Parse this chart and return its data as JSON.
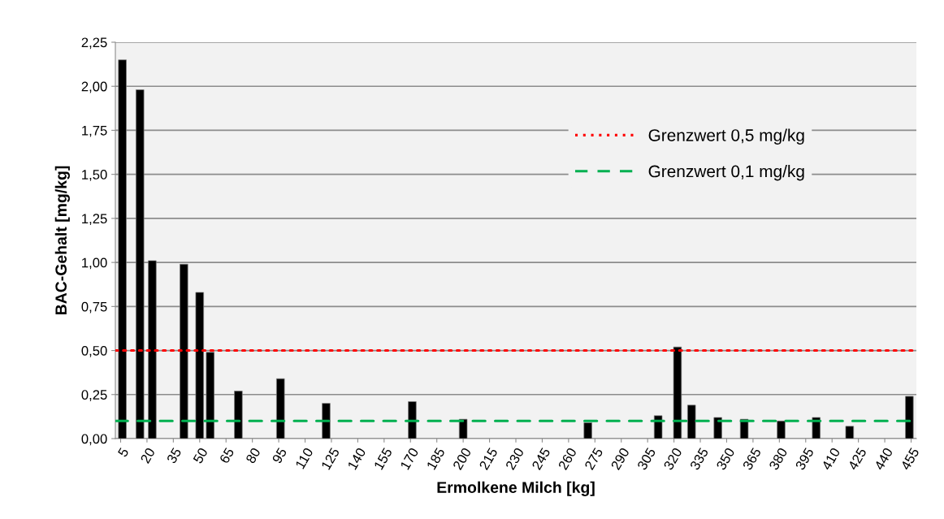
{
  "chart_data": {
    "type": "bar",
    "xlabel": "Ermolkene Milch [kg]",
    "ylabel": "BAC-Gehalt [mg/kg]",
    "x": [
      6,
      16,
      23,
      41,
      50,
      56,
      72,
      96,
      122,
      171,
      200,
      271,
      311,
      322,
      330,
      345,
      360,
      381,
      401,
      420,
      454
    ],
    "series": [
      {
        "color": "#000000",
        "values": [
          2.15,
          1.98,
          1.01,
          0.99,
          0.83,
          0.49,
          0.27,
          0.34,
          0.2,
          0.21,
          0.11,
          0.09,
          0.13,
          0.52,
          0.19,
          0.12,
          0.11,
          0.1,
          0.12,
          0.07,
          0.24
        ]
      }
    ],
    "xlim": [
      2,
      458
    ],
    "xticks": [
      5,
      20,
      35,
      50,
      65,
      80,
      95,
      110,
      125,
      140,
      155,
      170,
      185,
      200,
      215,
      230,
      245,
      260,
      275,
      290,
      305,
      320,
      335,
      350,
      365,
      380,
      395,
      410,
      425,
      440,
      455
    ],
    "ylim": [
      0,
      2.25
    ],
    "yticks": [
      {
        "value": 0,
        "label": "0,00"
      },
      {
        "value": 0.25,
        "label": "0,25"
      },
      {
        "value": 0.5,
        "label": "0,50"
      },
      {
        "value": 0.75,
        "label": "0,75"
      },
      {
        "value": 1,
        "label": "1,00"
      },
      {
        "value": 1.25,
        "label": "1,25"
      },
      {
        "value": 1.5,
        "label": "1,50"
      },
      {
        "value": 1.75,
        "label": "1,75"
      },
      {
        "value": 2,
        "label": "2,00"
      },
      {
        "value": 2.25,
        "label": "2,25"
      }
    ],
    "ref_lines": [
      {
        "axis": "y",
        "value": 0.5,
        "label": "Grenzwert 0,5 mg/kg",
        "color": "#ff0000",
        "line_style": "dotted"
      },
      {
        "axis": "y",
        "value": 0.1,
        "label": "Grenzwert 0,1 mg/kg",
        "color": "#00b050",
        "line_style": "dashed"
      }
    ],
    "grid": "y",
    "legend": "top right"
  }
}
